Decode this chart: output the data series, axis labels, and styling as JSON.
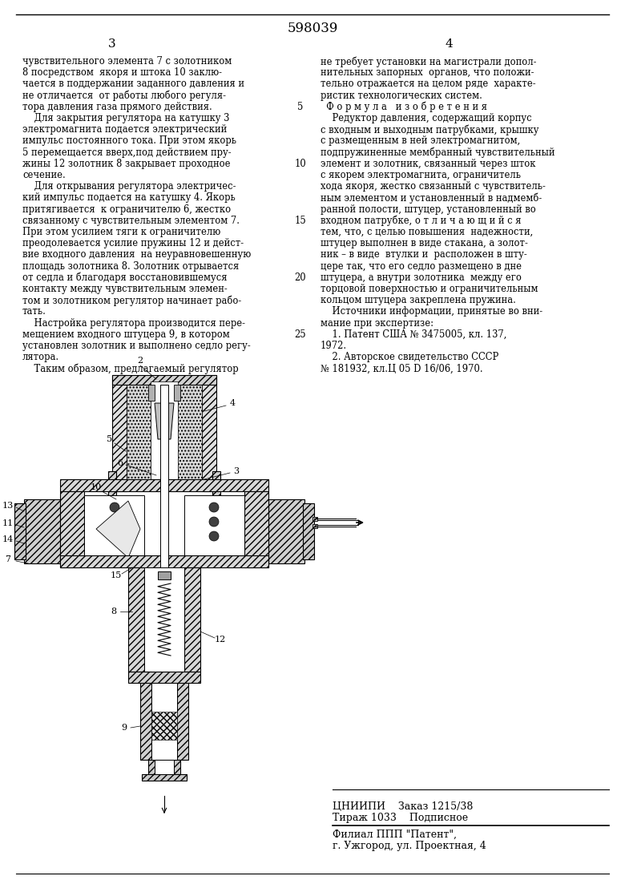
{
  "patent_number": "598039",
  "bg_color": "#ffffff",
  "text_color": "#000000",
  "font_size": 8.3,
  "col1_lines": [
    "чувствительного элемента 7 с золотником",
    "8 посредством  якоря и штока 10 заклю-",
    "чается в поддержании заданного давления и",
    "не отличается  от работы любого регуля-",
    "тора давления газа прямого действия.",
    "    Для закрытия регулятора на катушку 3",
    "электромагнита подается электрический",
    "импульс постоянного тока. При этом якорь",
    "5 перемещается вверх,под действием пру-",
    "жины 12 золотник 8 закрывает проходное",
    "сечение.",
    "    Для открывания регулятора электричес-",
    "кий импульс подается на катушку 4. Якорь",
    "притягивается  к ограничителю 6, жестко",
    "связанному с чувствительным элементом 7.",
    "При этом усилием тяги к ограничителю",
    "преодолевается усилие пружины 12 и дейст-",
    "вие входного давления  на неуравновешенную",
    "площадь золотника 8. Золотник отрывается",
    "от седла и благодаря восстановившемуся",
    "контакту между чувствительным элемен-",
    "том и золотником регулятор начинает рабо-",
    "тать.",
    "    Настройка регулятора производится пере-",
    "мещением входного штуцера 9, в котором",
    "установлен золотник и выполнено седло регу-",
    "лятора.",
    "    Таким образом, предлагаемый регулятор"
  ],
  "col2_lines": [
    "не требует установки на магистрали допол-",
    "нительных запорных  органов, что положи-",
    "тельно отражается на целом ряде  характе-",
    "ристик технологических систем.",
    "  Ф о р м у л а   и з о б р е т е н и я",
    "    Редуктор давления, содержащий корпус",
    "с входным и выходным патрубками, крышку",
    "с размещенным в ней электромагнитом,",
    "подпружиненные мембранный чувствительный",
    "элемент и золотник, связанный через шток",
    "с якорем электромагнита, ограничитель",
    "хода якоря, жестко связанный с чувствитель-",
    "ным элементом и установленный в надмемб-",
    "ранной полости, штуцер, установленный во",
    "входном патрубке, о т л и ч а ю щ и й с я",
    "тем, что, с целью повышения  надежности,",
    "штуцер выполнен в виде стакана, а золот-",
    "ник – в виде  втулки и  расположен в шту-",
    "цере так, что его седло размещено в дне",
    "штуцера, а внутри золотника  между его",
    "торцовой поверхностью и ограничительным",
    "кольцом штуцера закреплена пружина.",
    "    Источники информации, принятые во вни-",
    "мание при экспертизе:",
    "    1. Патент США № 3475005, кл. 137,",
    "1972.",
    "    2. Авторское свидетельство СССР",
    "№ 181932, кл.Ц 05 D 16/06, 1970."
  ],
  "line_numbers": [
    {
      "line": 5,
      "text": "5"
    },
    {
      "line": 10,
      "text": "10"
    },
    {
      "line": 15,
      "text": "15"
    },
    {
      "line": 20,
      "text": "20"
    },
    {
      "line": 25,
      "text": "25"
    }
  ],
  "bottom_info": [
    "ЦНИИПИ    Заказ 1215/38",
    "Тираж 1033    Подписное",
    "Филиал ППП \"Патент\",",
    "г. Ужгород, ул. Проектная, 4"
  ]
}
